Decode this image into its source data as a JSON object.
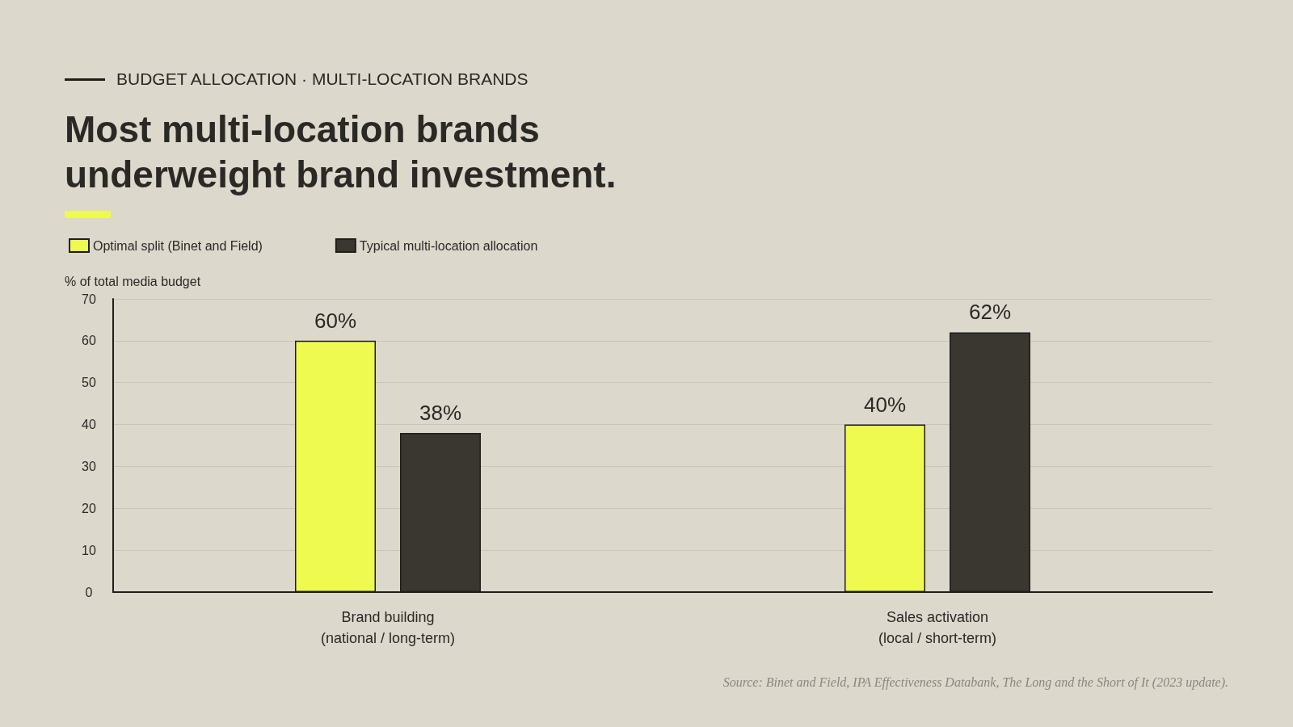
{
  "chart_data": {
    "type": "bar",
    "subtitle": "BUDGET ALLOCATION · MULTI-LOCATION BRANDS",
    "title": "Most multi-location brands underweight brand investment.",
    "ylabel": "% of total media budget",
    "categories": [
      "Brand building\n(national / long-term)",
      "Sales activation\n(local / short-term)"
    ],
    "series": [
      {
        "name": "Optimal split (Binet and Field)",
        "color": "#eefa50",
        "values": [
          60,
          40
        ],
        "value_labels": [
          "60%",
          "40%"
        ]
      },
      {
        "name": "Typical multi-location allocation",
        "color": "#3a3731",
        "values": [
          38,
          62
        ],
        "value_labels": [
          "38%",
          "62%"
        ]
      }
    ],
    "ylim": [
      0,
      70
    ],
    "yticks": [
      0,
      10,
      20,
      30,
      40,
      50,
      60,
      70
    ],
    "grid": "y",
    "legend": "top left",
    "annotations": [
      "Source: Binet and Field, IPA Effectiveness Databank, The Long and the Short of It (2023 update)."
    ]
  }
}
